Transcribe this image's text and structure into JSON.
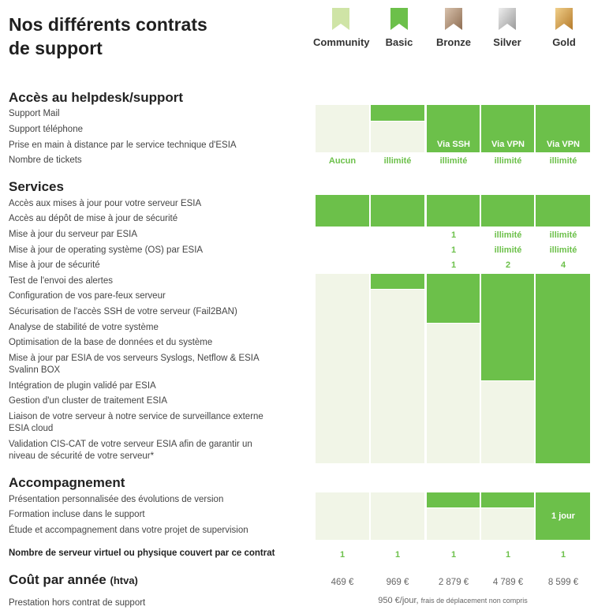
{
  "title_line1": "Nos différents contrats",
  "title_line2": "de support",
  "tiers": [
    {
      "name": "Community",
      "icon": "bookmark-icon",
      "color": "#cfe4a6"
    },
    {
      "name": "Basic",
      "icon": "bookmark-icon",
      "color": "#6cc04a"
    },
    {
      "name": "Bronze",
      "icon": "bookmark-icon",
      "color": "#a88a71"
    },
    {
      "name": "Silver",
      "icon": "bookmark-icon",
      "color": "#b9b9b9"
    },
    {
      "name": "Gold",
      "icon": "bookmark-icon",
      "color": "#d49a40"
    }
  ],
  "sections": {
    "helpdesk": "Accès au helpdesk/support",
    "services": "Services",
    "accompagnement": "Accompagnement",
    "cout": "Coût par année",
    "cout_suffix": "(htva)"
  },
  "helpdesk_rows": [
    "Support Mail",
    "Support téléphone",
    "Prise en main à distance par le service technique d'ESIA",
    "Nombre de tickets"
  ],
  "remote_values": [
    "Via SSH",
    "Via VPN",
    "Via VPN"
  ],
  "tickets": [
    "Aucun",
    "illimité",
    "illimité",
    "illimité",
    "illimité"
  ],
  "services_rows": [
    "Accès aux mises à jour pour votre serveur ESIA",
    "Accès au dépôt de mise à jour de sécurité",
    "Mise à jour du serveur par ESIA",
    "Mise à jour de operating système (OS) par ESIA",
    "Mise à jour de sécurité",
    "Test de l'envoi des alertes",
    "Configuration de vos pare-feux serveur",
    "Sécurisation de l'accès SSH de votre serveur (Fail2BAN)",
    "Analyse de stabilité de votre système",
    "Optimisation de la base de données et du système",
    "Mise à jour par ESIA de vos serveurs Syslogs, Netflow & ESIA",
    "Svalinn BOX",
    "Intégration de plugin validé par ESIA",
    "Gestion d'un cluster de traitement ESIA",
    "Liaison de votre serveur à notre service de surveillance externe",
    "ESIA cloud",
    "Validation CIS-CAT de votre serveur ESIA afin de garantir un",
    "niveau de sécurité de votre serveur*"
  ],
  "maj_serveur": [
    "1",
    "illimité",
    "illimité"
  ],
  "maj_os": [
    "1",
    "illimité",
    "illimité"
  ],
  "maj_securite": [
    "1",
    "2",
    "4"
  ],
  "accomp_rows": [
    "Présentation personnalisée des évolutions de version",
    "Formation incluse dans le support",
    "Étude et accompagnement dans votre projet de supervision"
  ],
  "formation_gold": "1 jour",
  "servers_label": "Nombre de serveur virtuel ou physique couvert par ce contrat",
  "servers": [
    "1",
    "1",
    "1",
    "1",
    "1"
  ],
  "prices": [
    "469 €",
    "969 €",
    "2 879 €",
    "4 789 €",
    "8 599 €"
  ],
  "presta_label": "Prestation hors contrat de support",
  "presta_price": "950 €/jour,",
  "presta_note": "frais de déplacement non compris"
}
